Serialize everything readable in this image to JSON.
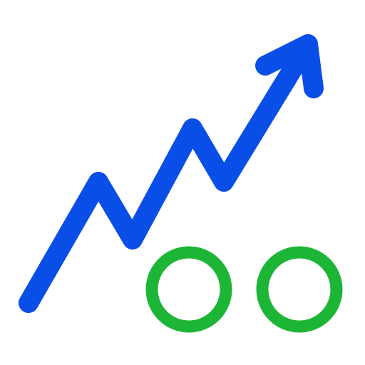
{
  "icon": {
    "name": "trending-up-chart-icon",
    "parts": [
      {
        "name": "rising-zigzag-arrow-icon",
        "color": "#0a4ee8"
      },
      {
        "name": "circle-outline-icon",
        "color": "#1db535"
      },
      {
        "name": "circle-outline-icon",
        "color": "#1db535"
      }
    ]
  },
  "colors": {
    "line": "#0a4ee8",
    "circles": "#1db535",
    "background": "#ffffff"
  }
}
